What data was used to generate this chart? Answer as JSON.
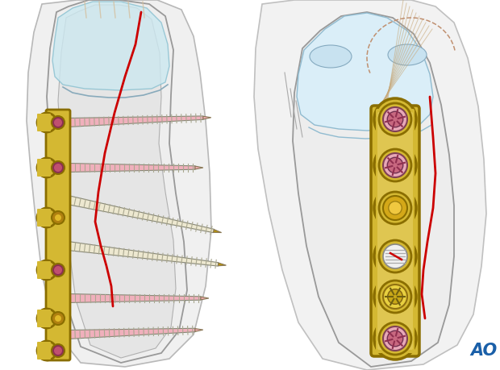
{
  "bg_color": "#ffffff",
  "figure_size": [
    6.2,
    4.59
  ],
  "dpi": 100,
  "ao_text": "AO",
  "ao_color": "#1a5fa8",
  "ao_fontsize": 15,
  "plate_color": "#d4b832",
  "plate_dark": "#8a6e00",
  "plate_outline": "#5a4500",
  "plate_light": "#f0dc80",
  "screw_pink": "#f0b0bc",
  "screw_cream": "#ede8d0",
  "screw_tip_gold": "#b8940a",
  "screw_head_pink": "#d06878",
  "screw_head_star": "#a04055",
  "screw_gold_inner": "#c8a010",
  "fracture_line": "#cc0000",
  "bone_fill": "#f0f0f0",
  "bone_edge": "#999999",
  "bone_inner": "#e8e8e8",
  "cartilage": "#cce8f0",
  "skin_fill": "#f8f8f8",
  "skin_edge": "#bbbbbb",
  "tendon": "#c8a878"
}
